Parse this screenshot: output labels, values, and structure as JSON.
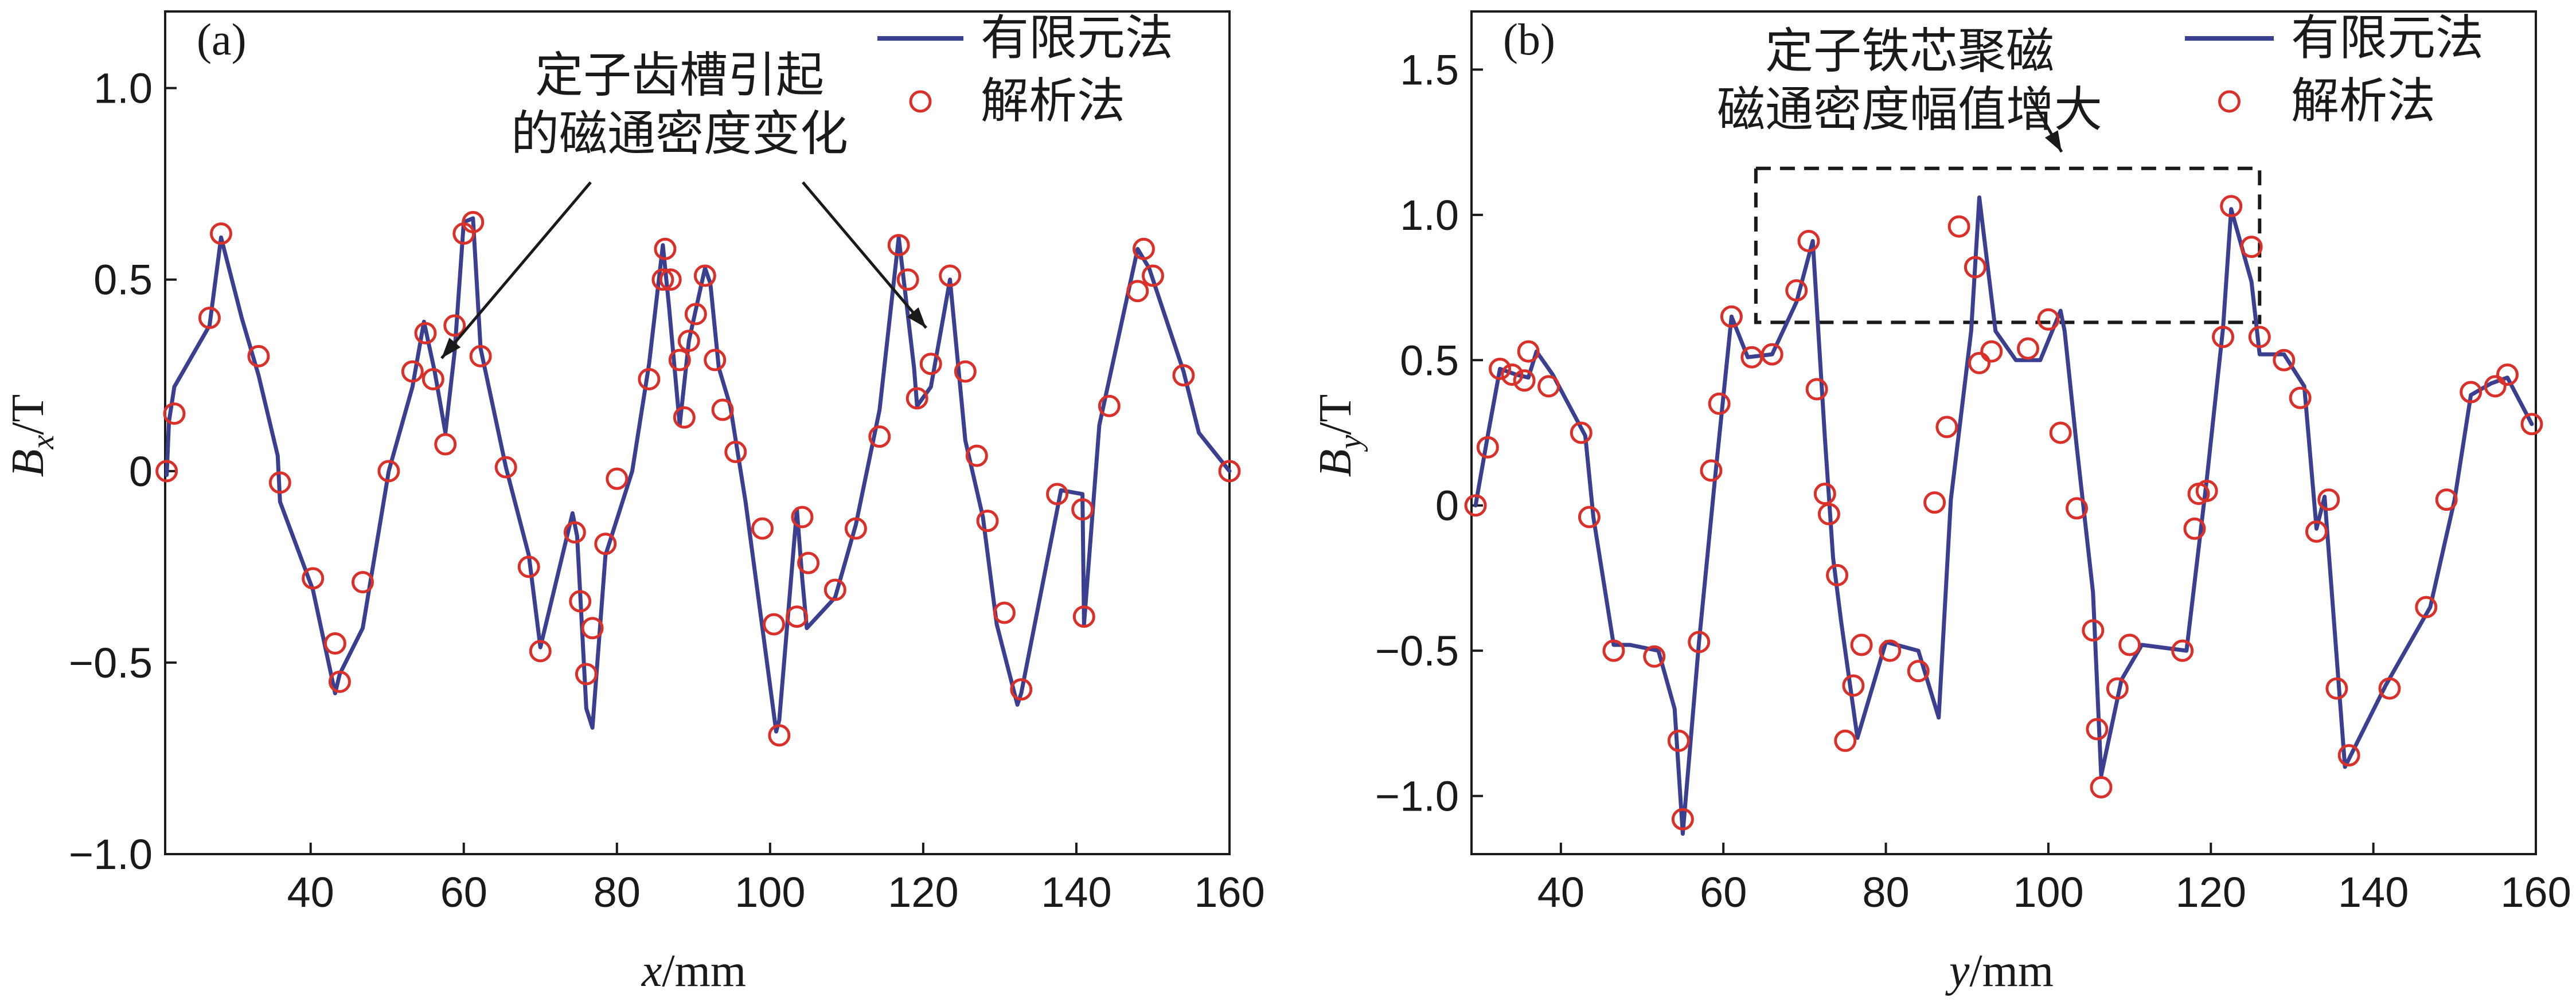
{
  "chart_data": [
    {
      "type": "line",
      "panel_label": "(a)",
      "xlabel_var": "x",
      "xlabel_unit": "/mm",
      "ylabel_var": "B",
      "ylabel_sub": "x",
      "ylabel_unit": "/T",
      "xlim": [
        21,
        160
      ],
      "ylim": [
        -1.0,
        1.2
      ],
      "xticks": [
        40,
        60,
        80,
        100,
        120,
        140,
        160
      ],
      "yticks": [
        -1.0,
        -0.5,
        0,
        0.5,
        1.0
      ],
      "ytick_labels": [
        "−1.0",
        "−0.5",
        "0",
        "0.5",
        "1.0"
      ],
      "legend": {
        "position": "top-right",
        "entries": [
          "有限元法",
          "解析法"
        ]
      },
      "annotation": {
        "lines": [
          "定子齿槽引起",
          "的磁通密度变化"
        ]
      },
      "colors": {
        "line": "#3b3f8f",
        "marker": "#d9302a"
      },
      "series": [
        {
          "name": "有限元法",
          "x": [
            21.2,
            21.5,
            22.2,
            26.8,
            28.3,
            31.0,
            33.2,
            35.7,
            36.0,
            40.3,
            43.2,
            43.8,
            46.8,
            50.2,
            53.3,
            54.8,
            56.2,
            57.6,
            58.8,
            60.0,
            61.2,
            62.2,
            65.5,
            68.5,
            70.0,
            74.2,
            74.8,
            76.0,
            76.8,
            78.5,
            82.0,
            84.2,
            86.0,
            86.8,
            88.2,
            89.4,
            91.5,
            92.2,
            93.3,
            94.8,
            96.8,
            99.0,
            100.8,
            101.2,
            103.5,
            104.2,
            104.8,
            108.5,
            111.2,
            114.3,
            116.8,
            118.8,
            119.2,
            121.0,
            123.5,
            125.5,
            127.8,
            129.6,
            132.3,
            132.8,
            138.0,
            140.8,
            141.0,
            143.0,
            148.0,
            149.5,
            151.5,
            154.0,
            156.0,
            160.0
          ],
          "y": [
            -0.01,
            0.13,
            0.22,
            0.38,
            0.61,
            0.4,
            0.25,
            0.04,
            -0.08,
            -0.31,
            -0.58,
            -0.53,
            -0.41,
            0.0,
            0.22,
            0.39,
            0.26,
            0.1,
            0.31,
            0.65,
            0.66,
            0.32,
            0.01,
            -0.22,
            -0.46,
            -0.11,
            -0.17,
            -0.62,
            -0.67,
            -0.22,
            0.0,
            0.28,
            0.59,
            0.43,
            0.12,
            0.34,
            0.53,
            0.49,
            0.27,
            0.17,
            -0.08,
            -0.41,
            -0.68,
            -0.65,
            -0.1,
            -0.28,
            -0.41,
            -0.33,
            -0.14,
            0.16,
            0.61,
            0.27,
            0.17,
            0.22,
            0.5,
            0.08,
            -0.12,
            -0.4,
            -0.61,
            -0.58,
            -0.05,
            -0.06,
            -0.4,
            0.12,
            0.58,
            0.53,
            0.41,
            0.26,
            0.1,
            0.0
          ]
        },
        {
          "name": "解析法",
          "x": [
            21.2,
            22.2,
            26.8,
            28.3,
            33.2,
            36.0,
            40.3,
            43.2,
            43.8,
            46.8,
            50.2,
            53.3,
            55.0,
            56.0,
            57.6,
            58.8,
            60.0,
            61.2,
            62.2,
            65.5,
            68.5,
            70.0,
            74.5,
            75.2,
            76.0,
            76.8,
            78.5,
            80.0,
            84.2,
            86.0,
            86.3,
            87.0,
            88.2,
            88.8,
            89.4,
            90.3,
            91.5,
            92.8,
            93.8,
            95.5,
            99.0,
            100.5,
            101.2,
            103.5,
            104.2,
            105.0,
            108.5,
            111.2,
            114.3,
            116.8,
            118.0,
            119.2,
            121.0,
            123.5,
            125.5,
            127.0,
            128.4,
            130.6,
            132.8,
            137.5,
            140.8,
            141.0,
            144.3,
            148.0,
            148.8,
            150.0,
            154.0,
            160.0
          ],
          "y": [
            0.0,
            0.15,
            0.4,
            0.62,
            0.3,
            -0.03,
            -0.28,
            -0.45,
            -0.55,
            -0.29,
            0.0,
            0.26,
            0.36,
            0.24,
            0.07,
            0.38,
            0.62,
            0.65,
            0.3,
            0.01,
            -0.25,
            -0.47,
            -0.16,
            -0.34,
            -0.53,
            -0.41,
            -0.19,
            -0.02,
            0.24,
            0.5,
            0.58,
            0.5,
            0.29,
            0.14,
            0.34,
            0.41,
            0.51,
            0.29,
            0.16,
            0.05,
            -0.15,
            -0.4,
            -0.69,
            -0.38,
            -0.12,
            -0.24,
            -0.31,
            -0.15,
            0.09,
            0.59,
            0.5,
            0.19,
            0.28,
            0.51,
            0.26,
            0.04,
            -0.13,
            -0.37,
            -0.57,
            -0.06,
            -0.1,
            -0.38,
            0.17,
            0.47,
            0.58,
            0.51,
            0.25,
            0.0
          ]
        }
      ]
    },
    {
      "type": "line",
      "panel_label": "(b)",
      "xlabel_var": "y",
      "xlabel_unit": "/mm",
      "ylabel_var": "B",
      "ylabel_sub": "y",
      "ylabel_unit": "/T",
      "xlim": [
        29,
        160
      ],
      "ylim": [
        -1.2,
        1.7
      ],
      "xticks": [
        40,
        60,
        80,
        100,
        120,
        140,
        160
      ],
      "yticks": [
        -1.0,
        -0.5,
        0,
        0.5,
        1.0,
        1.5
      ],
      "ytick_labels": [
        "−1.0",
        "−0.5",
        "0",
        "0.5",
        "1.0",
        "1.5"
      ],
      "legend": {
        "position": "top-right",
        "entries": [
          "有限元法",
          "解析法"
        ]
      },
      "annotation": {
        "lines": [
          "定子铁芯聚磁",
          "磁通密度幅值增大"
        ]
      },
      "highlight_box": {
        "x": [
          64,
          126
        ],
        "y": [
          0.63,
          1.16
        ]
      },
      "colors": {
        "line": "#3b3f8f",
        "marker": "#d9302a"
      },
      "series": [
        {
          "name": "有限元法",
          "x": [
            29.5,
            31.0,
            32.5,
            34.5,
            36.0,
            37.0,
            39.0,
            43.0,
            44.0,
            46.5,
            48.5,
            52.0,
            54.0,
            55.0,
            57.0,
            59.0,
            61.0,
            63.0,
            66.0,
            69.0,
            71.0,
            72.5,
            73.5,
            74.5,
            76.5,
            80.0,
            84.0,
            86.5,
            88.0,
            90.5,
            91.5,
            93.5,
            96.0,
            99.0,
            101.5,
            102.0,
            103.5,
            105.5,
            106.5,
            109.0,
            111.5,
            117.0,
            119.5,
            121.5,
            122.5,
            125.0,
            126.0,
            129.0,
            131.5,
            133.0,
            134.0,
            136.5,
            141.5,
            147.0,
            150.0,
            152.0,
            154.5,
            156.5,
            159.5
          ],
          "y": [
            0.0,
            0.24,
            0.47,
            0.45,
            0.44,
            0.53,
            0.45,
            0.24,
            -0.04,
            -0.48,
            -0.48,
            -0.5,
            -0.7,
            -1.13,
            -0.47,
            0.1,
            0.65,
            0.51,
            0.52,
            0.7,
            0.91,
            0.23,
            -0.18,
            -0.4,
            -0.8,
            -0.47,
            -0.5,
            -0.73,
            0.02,
            0.6,
            1.06,
            0.6,
            0.5,
            0.5,
            0.67,
            0.6,
            0.2,
            -0.3,
            -0.93,
            -0.6,
            -0.48,
            -0.5,
            0.09,
            0.61,
            1.02,
            0.77,
            0.52,
            0.52,
            0.41,
            -0.08,
            0.03,
            -0.9,
            -0.62,
            -0.35,
            0.02,
            0.38,
            0.42,
            0.44,
            0.28
          ]
        },
        {
          "name": "解析法",
          "x": [
            29.5,
            31.0,
            32.5,
            34.0,
            35.5,
            36.0,
            38.5,
            42.5,
            43.5,
            46.5,
            51.5,
            54.5,
            55.0,
            57.0,
            58.5,
            59.5,
            61.0,
            63.5,
            66.0,
            69.0,
            70.5,
            71.5,
            72.5,
            73.0,
            74.0,
            75.0,
            76.0,
            77.0,
            80.5,
            84.0,
            86.0,
            87.5,
            89.0,
            91.0,
            91.5,
            93.0,
            97.5,
            100.0,
            101.5,
            103.5,
            105.5,
            106.0,
            106.5,
            108.5,
            110.0,
            116.5,
            118.0,
            118.5,
            119.5,
            121.5,
            122.5,
            125.0,
            126.0,
            129.0,
            131.0,
            133.0,
            134.5,
            135.5,
            137.0,
            142.0,
            146.5,
            149.0,
            152.0,
            155.0,
            156.5,
            159.5
          ],
          "y": [
            0.0,
            0.2,
            0.47,
            0.45,
            0.43,
            0.53,
            0.41,
            0.25,
            -0.04,
            -0.5,
            -0.52,
            -0.81,
            -1.08,
            -0.47,
            0.12,
            0.35,
            0.65,
            0.51,
            0.52,
            0.74,
            0.91,
            0.4,
            0.04,
            -0.03,
            -0.24,
            -0.81,
            -0.62,
            -0.48,
            -0.5,
            -0.57,
            0.01,
            0.27,
            0.96,
            0.82,
            0.49,
            0.53,
            0.54,
            0.64,
            0.25,
            -0.01,
            -0.43,
            -0.77,
            -0.97,
            -0.63,
            -0.48,
            -0.5,
            -0.08,
            0.04,
            0.05,
            0.58,
            1.03,
            0.89,
            0.58,
            0.5,
            0.37,
            -0.09,
            0.02,
            -0.63,
            -0.86,
            -0.63,
            -0.35,
            0.02,
            0.39,
            0.41,
            0.45,
            0.28
          ]
        }
      ]
    }
  ]
}
